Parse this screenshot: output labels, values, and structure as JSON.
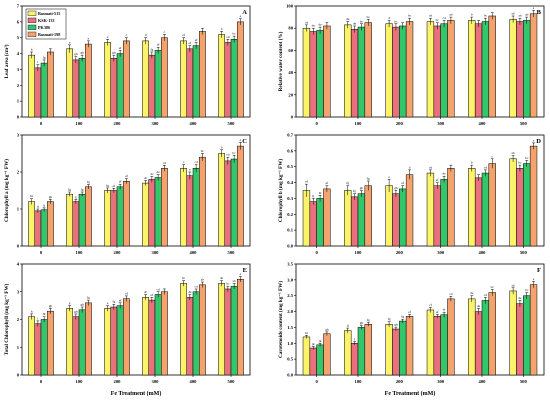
{
  "colors": {
    "Basmati-515": "#fbf36a",
    "KSK-133": "#e9707c",
    "PK386": "#33c76b",
    "Basmati-198": "#f4a26e"
  },
  "chart_data": [
    {
      "type": "bar",
      "panel": "A",
      "categories": [
        "0",
        "100",
        "200",
        "300",
        "400",
        "500"
      ],
      "xlabel": "Fe Treatment (mM)",
      "ylabel": "Leaf area (cm²)",
      "ylim": [
        0,
        7
      ],
      "yticks": [
        0,
        1,
        2,
        3,
        4,
        5,
        6,
        7
      ],
      "legend": {
        "position": "top-left",
        "entries": [
          "Basmati-515",
          "KSK-133",
          "PK386",
          "Basmati-198"
        ]
      },
      "series": [
        {
          "name": "Basmati-515",
          "values": [
            3.9,
            4.3,
            4.7,
            4.8,
            4.8,
            5.2
          ],
          "errors": [
            0.2,
            0.25,
            0.2,
            0.2,
            0.2,
            0.2
          ],
          "labels": [
            "h",
            "e",
            "e",
            "d",
            "ef",
            "b"
          ]
        },
        {
          "name": "KSK-133",
          "values": [
            3.1,
            3.6,
            3.7,
            3.9,
            4.3,
            4.7
          ],
          "errors": [
            0.2,
            0.2,
            0.2,
            0.2,
            0.2,
            0.2
          ],
          "labels": [
            "i",
            "gh",
            "gh",
            "fg",
            "ef",
            "cd"
          ]
        },
        {
          "name": "PK386",
          "values": [
            3.4,
            3.7,
            4.0,
            4.2,
            4.5,
            4.9
          ],
          "errors": [
            0.2,
            0.2,
            0.2,
            0.2,
            0.2,
            0.2
          ],
          "labels": [
            "fg",
            "gh",
            "ef",
            "ef",
            "ef",
            "bc"
          ]
        },
        {
          "name": "Basmati-198",
          "values": [
            4.1,
            4.6,
            4.8,
            5.0,
            5.4,
            6.0
          ],
          "errors": [
            0.2,
            0.2,
            0.2,
            0.2,
            0.2,
            0.2
          ],
          "labels": [
            "",
            "e",
            "c",
            "c",
            "",
            "a"
          ]
        }
      ]
    },
    {
      "type": "bar",
      "panel": "B",
      "categories": [
        "0",
        "100",
        "200",
        "300",
        "400",
        "500"
      ],
      "xlabel": "Fe Treatment (mM)",
      "ylabel": "Relative water content (%)",
      "ylim": [
        0,
        100
      ],
      "yticks": [
        0,
        20,
        40,
        60,
        80,
        100
      ],
      "series": [
        {
          "name": "Basmati-515",
          "values": [
            80,
            83,
            84,
            86,
            87,
            88
          ],
          "errors": [
            3,
            3,
            3,
            3,
            3,
            3
          ],
          "labels": [
            "cd",
            "de",
            "d",
            "cd",
            "b",
            "ab"
          ]
        },
        {
          "name": "KSK-133",
          "values": [
            77,
            79,
            81,
            82,
            84,
            86
          ],
          "errors": [
            3,
            3,
            3,
            3,
            3,
            3
          ],
          "labels": [
            "de",
            "de",
            "bc",
            "bc",
            "",
            "ab"
          ]
        },
        {
          "name": "PK386",
          "values": [
            78,
            81,
            82,
            84,
            86,
            87
          ],
          "errors": [
            3,
            3,
            3,
            3,
            3,
            3
          ],
          "labels": [
            "de",
            "bc",
            "",
            "cd",
            "bc",
            "ab"
          ]
        },
        {
          "name": "Basmati-198",
          "values": [
            82,
            85,
            86,
            87,
            91,
            93
          ],
          "errors": [
            3,
            3,
            3,
            3,
            3,
            3
          ],
          "labels": [
            "",
            "bc",
            "bc",
            "ab",
            "",
            "a"
          ]
        }
      ]
    },
    {
      "type": "bar",
      "panel": "C",
      "categories": [
        "0",
        "100",
        "200",
        "300",
        "400",
        "500"
      ],
      "xlabel": "Fe Treatment (mM)",
      "ylabel": "Chlorophyll a (mg kg⁻¹ FW)",
      "ylim": [
        0,
        3
      ],
      "yticks": [
        0,
        1,
        2,
        3
      ],
      "series": [
        {
          "name": "Basmati-515",
          "values": [
            1.2,
            1.4,
            1.5,
            1.7,
            2.1,
            2.5
          ],
          "errors": [
            0.08,
            0.06,
            0.07,
            0.07,
            0.1,
            0.1
          ],
          "labels": [
            "hi",
            "fg",
            "fg",
            "dc",
            "c",
            "b"
          ]
        },
        {
          "name": "KSK-133",
          "values": [
            0.95,
            1.2,
            1.5,
            1.8,
            1.9,
            2.3
          ],
          "errors": [
            0.05,
            0.06,
            0.06,
            0.08,
            0.1,
            0.1
          ],
          "labels": [
            "ij",
            "g",
            "ef",
            "dc",
            "e",
            "cd"
          ]
        },
        {
          "name": "PK386",
          "values": [
            0.98,
            1.4,
            1.6,
            1.85,
            2.1,
            2.35
          ],
          "errors": [
            0.05,
            0.06,
            0.07,
            0.08,
            0.1,
            0.1
          ],
          "labels": [
            "ij",
            "fg",
            "ef",
            "de",
            "cd",
            "bc"
          ]
        },
        {
          "name": "Basmati-198",
          "values": [
            1.2,
            1.6,
            1.75,
            2.1,
            2.4,
            2.7
          ],
          "errors": [
            0.06,
            0.06,
            0.07,
            0.08,
            0.1,
            0.1
          ],
          "labels": [
            "gh",
            "fg",
            "ef",
            "cd",
            "bc",
            "a"
          ]
        }
      ]
    },
    {
      "type": "bar",
      "panel": "D",
      "categories": [
        "0",
        "100",
        "200",
        "300",
        "400",
        "500"
      ],
      "xlabel": "Fe Treatment (mM)",
      "ylabel": "Chlorophyll b (mg kg⁻¹ FW)",
      "ylim": [
        0,
        0.7
      ],
      "yticks": [
        0,
        0.1,
        0.2,
        0.3,
        0.4,
        0.5,
        0.6,
        0.7
      ],
      "series": [
        {
          "name": "Basmati-515",
          "values": [
            0.35,
            0.35,
            0.38,
            0.46,
            0.49,
            0.55
          ],
          "errors": [
            0.04,
            0.03,
            0.04,
            0.02,
            0.02,
            0.02
          ],
          "labels": [
            "ef",
            "fg",
            "e",
            "cd",
            "b",
            "ab"
          ]
        },
        {
          "name": "KSK-133",
          "values": [
            0.28,
            0.31,
            0.33,
            0.38,
            0.43,
            0.49
          ],
          "errors": [
            0.02,
            0.02,
            0.02,
            0.02,
            0.02,
            0.02
          ],
          "labels": [
            "ij",
            "fg",
            "gh",
            "ef",
            "",
            "bc"
          ]
        },
        {
          "name": "PK386",
          "values": [
            0.3,
            0.33,
            0.36,
            0.42,
            0.46,
            0.52
          ],
          "errors": [
            0.02,
            0.02,
            0.02,
            0.02,
            0.02,
            0.02
          ],
          "labels": [
            "hi",
            "gh",
            "ef",
            "de",
            "cd",
            "bc"
          ]
        },
        {
          "name": "Basmati-198",
          "values": [
            0.36,
            0.38,
            0.45,
            0.49,
            0.52,
            0.63
          ],
          "errors": [
            0.02,
            0.03,
            0.03,
            0.02,
            0.03,
            0.02
          ],
          "labels": [
            "ef",
            "fg",
            "d",
            "",
            "c",
            "a"
          ]
        }
      ]
    },
    {
      "type": "bar",
      "panel": "E",
      "categories": [
        "0",
        "100",
        "200",
        "300",
        "400",
        "500"
      ],
      "xlabel": "Fe Treatment (mM)",
      "ylabel": "Total Chlorophyll (mg kg⁻¹ FW)",
      "ylim": [
        0,
        4
      ],
      "yticks": [
        0,
        1,
        2,
        3,
        4
      ],
      "series": [
        {
          "name": "Basmati-515",
          "values": [
            2.1,
            2.4,
            2.4,
            2.8,
            3.3,
            3.3
          ],
          "errors": [
            0.1,
            0.1,
            0.1,
            0.1,
            0.1,
            0.1
          ],
          "labels": [
            "h",
            "g",
            "e",
            "dc",
            "bc",
            "ab"
          ]
        },
        {
          "name": "KSK-133",
          "values": [
            1.85,
            2.1,
            2.45,
            2.7,
            2.8,
            3.1
          ],
          "errors": [
            0.1,
            0.1,
            0.1,
            0.1,
            0.1,
            0.1
          ],
          "labels": [
            "i",
            "gh",
            "fg",
            "ef",
            "de",
            "bc"
          ]
        },
        {
          "name": "PK386",
          "values": [
            2.0,
            2.35,
            2.5,
            2.9,
            3.0,
            3.2
          ],
          "errors": [
            0.1,
            0.1,
            0.1,
            0.1,
            0.1,
            0.1
          ],
          "labels": [
            "hi",
            "gh",
            "ef",
            "cd",
            "cd",
            "ab"
          ]
        },
        {
          "name": "Basmati-198",
          "values": [
            2.3,
            2.6,
            2.75,
            3.0,
            3.25,
            3.45
          ],
          "errors": [
            0.1,
            0.1,
            0.1,
            0.1,
            0.1,
            0.1
          ],
          "labels": [
            "gh",
            "fg",
            "ef",
            "",
            "ab",
            "a"
          ]
        }
      ]
    },
    {
      "type": "bar",
      "panel": "F",
      "categories": [
        "0",
        "100",
        "200",
        "300",
        "400",
        "500"
      ],
      "xlabel": "Fe Treatment (mM)",
      "ylabel": "Carotenoids content (mg kg⁻¹ FW)",
      "ylim": [
        0,
        3.5
      ],
      "yticks": [
        0,
        0.5,
        1.0,
        1.5,
        2.0,
        2.5,
        3.0,
        3.5
      ],
      "series": [
        {
          "name": "Basmati-515",
          "values": [
            1.2,
            1.4,
            1.6,
            2.05,
            2.4,
            2.65
          ],
          "errors": [
            0.05,
            0.08,
            0.08,
            0.08,
            0.1,
            0.1
          ],
          "labels": [
            "hi",
            "ij",
            "fg",
            "cf",
            "de",
            "ab"
          ]
        },
        {
          "name": "KSK-133",
          "values": [
            0.85,
            1.0,
            1.45,
            1.85,
            2.0,
            2.25
          ],
          "errors": [
            0.05,
            0.05,
            0.06,
            0.06,
            0.1,
            0.1
          ],
          "labels": [
            "jk",
            "j",
            "gh",
            "ef",
            "de",
            "de"
          ]
        },
        {
          "name": "PK386",
          "values": [
            0.95,
            1.5,
            1.7,
            1.9,
            2.35,
            2.5
          ],
          "errors": [
            0.05,
            0.06,
            0.06,
            0.08,
            0.1,
            0.1
          ],
          "labels": [
            "jk",
            "gh",
            "fg",
            "ef",
            "cd",
            "bc"
          ]
        },
        {
          "name": "Basmati-198",
          "values": [
            1.3,
            1.6,
            1.85,
            2.4,
            2.6,
            2.85
          ],
          "errors": [
            0.06,
            0.06,
            0.06,
            0.08,
            0.1,
            0.1
          ],
          "labels": [
            "gh",
            "fg",
            "ef",
            "cd",
            "bc",
            "a"
          ]
        }
      ]
    }
  ]
}
